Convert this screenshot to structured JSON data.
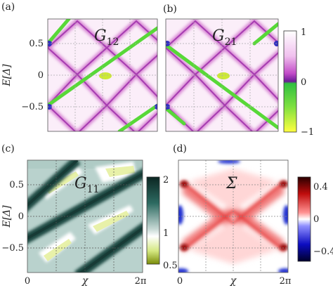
{
  "figure": {
    "panel_labels": [
      "(a)",
      "(b)",
      "(c)",
      "(d)"
    ],
    "ylabel": "E[Δ]",
    "xlabel": "χ"
  },
  "chart_data": [
    {
      "type": "heatmap",
      "panel": "(a)",
      "inset_symbol": "G",
      "inset_sub": "12",
      "ylim": [
        -0.85,
        0.85
      ],
      "yticks": [
        -0.5,
        0,
        0.5
      ],
      "ytick_labels": [
        "−0.5",
        "0",
        "0.5"
      ],
      "xlim": [
        0,
        6.283
      ],
      "grid": true,
      "colormap": "magenta-white with green/yellow negative",
      "colorbar_ref": 0
    },
    {
      "type": "heatmap",
      "panel": "(b)",
      "inset_symbol": "G",
      "inset_sub": "21",
      "ylim": [
        -0.85,
        0.85
      ],
      "xlim": [
        0,
        6.283
      ],
      "grid": true,
      "colorbar_ref": 0
    },
    {
      "type": "heatmap",
      "panel": "(c)",
      "inset_symbol": "G",
      "inset_sub": "11",
      "ylim": [
        -0.85,
        0.85
      ],
      "yticks": [
        -0.5,
        0,
        0.5
      ],
      "ytick_labels": [
        "−0.5",
        "0",
        "0.5"
      ],
      "xlim": [
        0,
        6.283
      ],
      "xticks": [
        0,
        3.1416,
        6.2832
      ],
      "xtick_labels": [
        "0",
        "χ",
        "2π"
      ],
      "grid": true,
      "colorbar_ref": 1
    },
    {
      "type": "heatmap",
      "panel": "(d)",
      "inset_symbol": "Σ",
      "inset_sub": "",
      "ylim": [
        -0.85,
        0.85
      ],
      "xlim": [
        0,
        6.283
      ],
      "xticks": [
        0,
        3.1416,
        6.2832
      ],
      "xtick_labels": [
        "0",
        "χ",
        "2π"
      ],
      "grid": true,
      "colorbar_ref": 2
    }
  ],
  "colorbars": [
    {
      "ticks": [
        1,
        0,
        -1
      ],
      "tick_labels": [
        "1",
        "0",
        "−1"
      ],
      "range": [
        -1,
        1
      ],
      "stops": [
        "#ffffff",
        "#f4c8f0",
        "#c060c8",
        "#7a1a9a",
        "#40e040",
        "#ffff30"
      ]
    },
    {
      "ticks": [
        2,
        1,
        0.5
      ],
      "tick_labels": [
        "2",
        "1",
        "0.5"
      ],
      "range": [
        0.5,
        2
      ],
      "stops": [
        "#0f2e2a",
        "#2f6b62",
        "#8fb5ad",
        "#ffffff",
        "#d6e870",
        "#8a9a10"
      ]
    },
    {
      "ticks": [
        0.4,
        0,
        -0.4
      ],
      "tick_labels": [
        "0.4",
        "0",
        "−0.4"
      ],
      "range": [
        -0.5,
        0.5
      ],
      "stops": [
        "#3a0000",
        "#b81010",
        "#ff6060",
        "#ffffff",
        "#6060ff",
        "#1010b8",
        "#00003a"
      ]
    }
  ]
}
